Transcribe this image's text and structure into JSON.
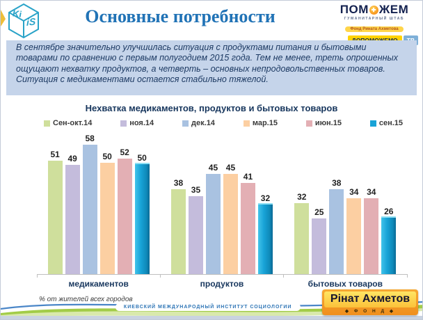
{
  "slide": {
    "title": "Основные потребности",
    "intro_text": "В сентябре значительно  улучшилась ситуация с продуктами  питания  и  бытовыми товарами  по сравнению  с первым  полугодием  2015 года.  Тем не менее,  треть опрошенных  ощущают нехватку продуктов,  а четверть –  основных непродовольственных  товаров.  Ситуация  с медикаментами   остается стабильно тяжелой."
  },
  "logos": {
    "kiis": {
      "face_top": "Ki",
      "face_front": "iS"
    },
    "pomozhem": {
      "name_left": "ПОМ",
      "name_right": "ЖЕМ",
      "subtitle": "ГУМАНИТАРНЫЙ ШТАБ",
      "badge_fund": "Фонд Рината Ахметова",
      "badge_dopomozhemo": "ДОПОМОЖЕМО",
      "badge_tv": "ТВ"
    },
    "akhmetov": {
      "name": "Рінат Ахметов",
      "sub": "◆ Ф О Н Д ◆"
    }
  },
  "footer": {
    "note": "% от жителей всех городов",
    "institute": "КИЕВСКИЙ МЕЖДУНАРОДНЫЙ ИНСТИТУТ СОЦИОЛОГИИ"
  },
  "colors": {
    "title_blue": "#2173b6",
    "intro_bg": "#c5d4ea",
    "navy": "#17365d",
    "axis": "#bfbfbf"
  },
  "chart_data": {
    "type": "bar",
    "title": "Нехватка медикаментов, продуктов и бытовых товаров",
    "categories": [
      "медикаментов",
      "продуктов",
      "бытовых  товаров"
    ],
    "series": [
      {
        "name": "Сен-окт.14",
        "color": "#cfdf9c",
        "values": [
          51,
          38,
          32
        ]
      },
      {
        "name": "ноя.14",
        "color": "#c4bcdc",
        "values": [
          49,
          35,
          25
        ]
      },
      {
        "name": "дек.14",
        "color": "#a9c2e1",
        "values": [
          58,
          45,
          38
        ]
      },
      {
        "name": "мар.15",
        "color": "#fccfa2",
        "values": [
          50,
          45,
          34
        ]
      },
      {
        "name": "июн.15",
        "color": "#e3afb4",
        "values": [
          52,
          41,
          34
        ]
      },
      {
        "name": "сен.15",
        "color": "#18a3d7",
        "values": [
          50,
          32,
          26
        ]
      }
    ],
    "ylim": [
      0,
      60
    ],
    "unit": "%",
    "grid": false,
    "legend_position": "top",
    "value_labels": true
  }
}
